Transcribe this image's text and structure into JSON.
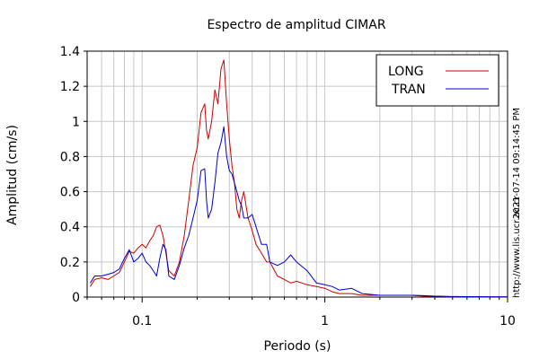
{
  "chart_data": {
    "type": "line",
    "title": "Espectro de amplitud CIMAR",
    "xlabel": "Periodo (s)",
    "ylabel": "Amplitud (cm/s)",
    "xscale": "log",
    "xlim": [
      0.05,
      10
    ],
    "ylim": [
      0,
      1.4
    ],
    "x_ticks": [
      0.1,
      1,
      10
    ],
    "x_tick_labels": [
      "0.1",
      "1",
      "10"
    ],
    "y_ticks": [
      0,
      0.2,
      0.4,
      0.6,
      0.8,
      1,
      1.2,
      1.4
    ],
    "y_tick_labels": [
      "0",
      "0.2",
      "0.4",
      "0.6",
      "0.8",
      "1",
      "1.2",
      "1.4"
    ],
    "grid": true,
    "legend_position": "top-right",
    "side_text_timestamp": "2021-07-14 09:14:45 PM",
    "side_text_url": "http://www.lis.ucr.ac.cr",
    "series": [
      {
        "name": "LONG",
        "color": "#cc0000",
        "x": [
          0.052,
          0.055,
          0.06,
          0.065,
          0.07,
          0.075,
          0.08,
          0.085,
          0.09,
          0.095,
          0.1,
          0.105,
          0.11,
          0.115,
          0.12,
          0.125,
          0.13,
          0.135,
          0.14,
          0.15,
          0.16,
          0.17,
          0.18,
          0.19,
          0.2,
          0.21,
          0.22,
          0.225,
          0.23,
          0.24,
          0.25,
          0.26,
          0.27,
          0.28,
          0.29,
          0.3,
          0.31,
          0.32,
          0.33,
          0.34,
          0.35,
          0.36,
          0.38,
          0.4,
          0.42,
          0.45,
          0.48,
          0.5,
          0.55,
          0.6,
          0.65,
          0.7,
          0.8,
          0.9,
          1.0,
          1.1,
          1.2,
          1.4,
          1.6,
          2.0,
          2.5,
          3.0,
          3.5,
          4.0,
          5.0,
          7.0,
          10.0
        ],
        "y": [
          0.06,
          0.1,
          0.11,
          0.1,
          0.12,
          0.14,
          0.2,
          0.26,
          0.25,
          0.28,
          0.3,
          0.28,
          0.32,
          0.35,
          0.4,
          0.41,
          0.35,
          0.25,
          0.15,
          0.12,
          0.2,
          0.35,
          0.55,
          0.75,
          0.85,
          1.05,
          1.1,
          0.95,
          0.9,
          1.0,
          1.18,
          1.1,
          1.3,
          1.35,
          1.1,
          0.9,
          0.75,
          0.65,
          0.5,
          0.45,
          0.55,
          0.6,
          0.45,
          0.38,
          0.3,
          0.25,
          0.2,
          0.2,
          0.12,
          0.1,
          0.08,
          0.09,
          0.07,
          0.06,
          0.05,
          0.03,
          0.02,
          0.02,
          0.01,
          0.01,
          0.01,
          0.01,
          0.005,
          0.005,
          0.002,
          0.001,
          0.001
        ]
      },
      {
        "name": "TRAN",
        "color": "#0000cc",
        "x": [
          0.052,
          0.055,
          0.06,
          0.065,
          0.07,
          0.075,
          0.08,
          0.085,
          0.09,
          0.095,
          0.1,
          0.105,
          0.11,
          0.115,
          0.12,
          0.125,
          0.13,
          0.135,
          0.14,
          0.15,
          0.16,
          0.17,
          0.18,
          0.19,
          0.2,
          0.21,
          0.22,
          0.225,
          0.23,
          0.24,
          0.25,
          0.26,
          0.27,
          0.28,
          0.29,
          0.3,
          0.31,
          0.32,
          0.33,
          0.34,
          0.35,
          0.36,
          0.38,
          0.4,
          0.42,
          0.45,
          0.48,
          0.5,
          0.55,
          0.6,
          0.65,
          0.7,
          0.8,
          0.9,
          1.0,
          1.1,
          1.2,
          1.4,
          1.6,
          2.0,
          2.5,
          3.0,
          3.5,
          4.0,
          5.0,
          7.0,
          10.0
        ],
        "y": [
          0.08,
          0.12,
          0.12,
          0.13,
          0.14,
          0.16,
          0.22,
          0.27,
          0.2,
          0.22,
          0.25,
          0.2,
          0.18,
          0.15,
          0.12,
          0.22,
          0.3,
          0.27,
          0.12,
          0.1,
          0.18,
          0.28,
          0.35,
          0.45,
          0.55,
          0.72,
          0.73,
          0.55,
          0.45,
          0.5,
          0.65,
          0.82,
          0.88,
          0.97,
          0.8,
          0.72,
          0.7,
          0.65,
          0.6,
          0.55,
          0.52,
          0.45,
          0.45,
          0.47,
          0.4,
          0.3,
          0.3,
          0.2,
          0.18,
          0.2,
          0.24,
          0.2,
          0.15,
          0.08,
          0.07,
          0.06,
          0.04,
          0.05,
          0.02,
          0.01,
          0.01,
          0.01,
          0.008,
          0.005,
          0.003,
          0.002,
          0.001
        ]
      }
    ]
  }
}
